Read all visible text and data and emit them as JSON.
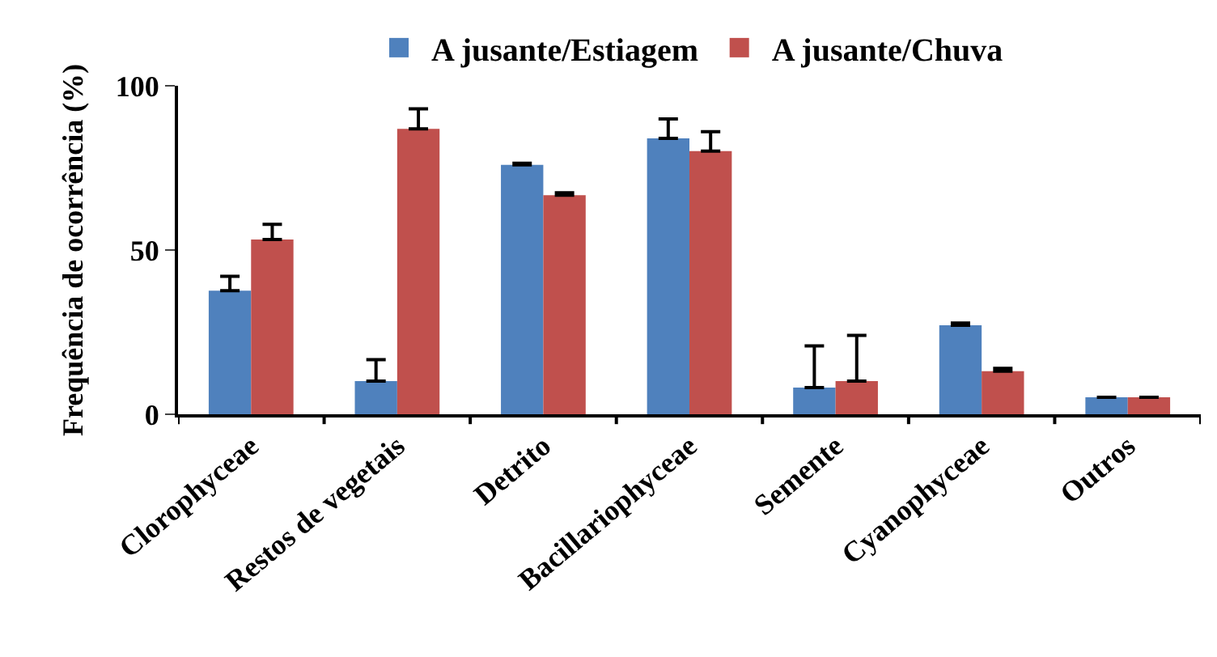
{
  "chart_data": {
    "type": "bar",
    "ylabel": "Frequência de ocorrência (%)",
    "categories": [
      "Clorophyceae",
      "Restos de vegetais",
      "Detrito",
      "Bacillariophyceae",
      "Semente",
      "Cyanophyceae",
      "Outros"
    ],
    "series": [
      {
        "name": "A jusante/Estiagem",
        "color": "#4f81bd",
        "values": [
          37.6,
          10.1,
          75.9,
          84,
          8.1,
          27.1,
          5.2
        ],
        "errors": [
          [
            37.6,
            42
          ],
          [
            10.1,
            16.6
          ],
          [
            75.9,
            76.4
          ],
          [
            84,
            89.9
          ],
          [
            8.1,
            20.8
          ],
          [
            27.1,
            27.8
          ],
          null
        ]
      },
      {
        "name": "A jusante/Chuva",
        "color": "#c0504d",
        "values": [
          53.2,
          86.9,
          66.7,
          80.1,
          10.1,
          13.1,
          5.2
        ],
        "errors": [
          [
            53.2,
            57.8
          ],
          [
            86.9,
            93
          ],
          [
            66.7,
            67.4
          ],
          [
            80.1,
            86
          ],
          [
            10.1,
            24
          ],
          [
            13.1,
            14
          ],
          null
        ]
      }
    ],
    "ylim": [
      0,
      100
    ],
    "yticks": [
      0,
      50,
      100
    ],
    "legend": "top"
  }
}
